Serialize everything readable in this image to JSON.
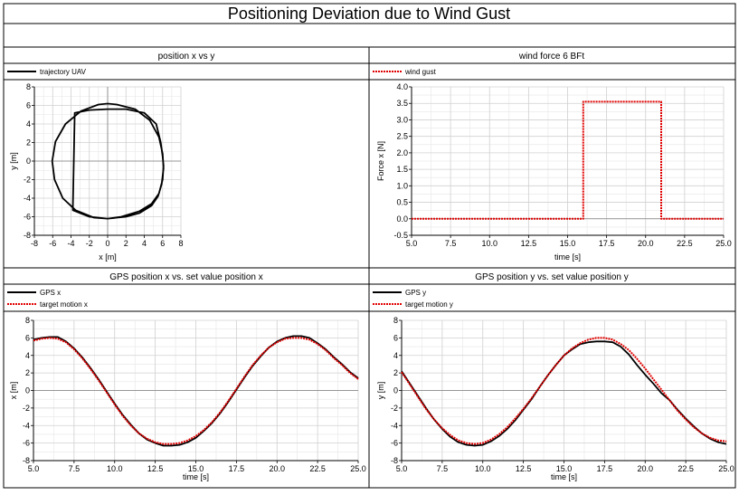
{
  "title": "Positioning Deviation due to Wind Gust",
  "chart_data": [
    {
      "id": "xy",
      "type": "line",
      "title": "position x vs y",
      "xlabel": "x [m]",
      "ylabel": "y [m]",
      "xlim": [
        -8,
        8
      ],
      "ylim": [
        -8,
        8
      ],
      "xticks": [
        -8,
        -6,
        -4,
        -2,
        0,
        2,
        4,
        6,
        8
      ],
      "yticks": [
        -8,
        -6,
        -4,
        -2,
        0,
        2,
        4,
        6,
        8
      ],
      "xtick_labels": [
        "-8",
        "-6",
        "-4",
        "-2",
        "0",
        "2",
        "4",
        "6",
        "8"
      ],
      "ytick_labels": [
        "-8",
        "-6",
        "-4",
        "-2",
        "0",
        "2",
        "4",
        "6",
        "8"
      ],
      "grid": true,
      "series": [
        {
          "name": "trajectory UAV",
          "color": "#000000",
          "style": "solid",
          "x": [
            -6.05,
            -5.7,
            -4.6,
            -2.9,
            -1.0,
            0.0,
            1.0,
            3.0,
            4.6,
            5.6,
            6.0,
            6.05,
            6.1,
            5.9,
            5.5,
            4.8,
            3.5,
            2.0,
            0.0,
            -2.0,
            -3.8,
            -3.6,
            -2.0,
            0.0,
            2.0,
            4.0,
            5.3,
            5.8,
            6.0,
            6.1,
            6.0,
            5.6,
            4.8,
            3.5,
            1.5,
            0.0,
            -1.5,
            -3.5,
            -4.9,
            -5.8,
            -6.05
          ],
          "y": [
            0.0,
            2.1,
            4.0,
            5.4,
            6.1,
            6.2,
            6.1,
            5.6,
            4.4,
            2.6,
            0.8,
            0.0,
            -0.8,
            -2.5,
            -3.8,
            -4.8,
            -5.6,
            -6.0,
            -6.2,
            -6.0,
            -5.3,
            5.2,
            5.5,
            5.6,
            5.6,
            5.2,
            4.0,
            2.0,
            0.5,
            -0.5,
            -2.0,
            -3.5,
            -4.6,
            -5.4,
            -6.0,
            -6.2,
            -6.1,
            -5.3,
            -4.0,
            -2.0,
            0.0
          ]
        }
      ]
    },
    {
      "id": "wind",
      "type": "line",
      "title": "wind force 6 BFt",
      "xlabel": "time [s]",
      "ylabel": "Force x [N]",
      "xlim": [
        5.0,
        25.0
      ],
      "ylim": [
        -0.5,
        4.0
      ],
      "xticks": [
        5.0,
        7.5,
        10.0,
        12.5,
        15.0,
        17.5,
        20.0,
        22.5,
        25.0
      ],
      "yticks": [
        -0.5,
        0.0,
        0.5,
        1.0,
        1.5,
        2.0,
        2.5,
        3.0,
        3.5,
        4.0
      ],
      "xtick_labels": [
        "5.0",
        "7.5",
        "10.0",
        "12.5",
        "15.0",
        "17.5",
        "20.0",
        "22.5",
        "25.0"
      ],
      "ytick_labels": [
        "-0.5",
        "0.0",
        "0.5",
        "1.0",
        "1.5",
        "2.0",
        "2.5",
        "3.0",
        "3.5",
        "4.0"
      ],
      "grid": true,
      "series": [
        {
          "name": "wind gust",
          "color": "#e00000",
          "style": "dotted",
          "x": [
            5.0,
            16.0,
            16.0,
            21.0,
            21.0,
            25.0
          ],
          "y": [
            0.0,
            0.0,
            3.55,
            3.55,
            0.0,
            0.0
          ]
        }
      ]
    },
    {
      "id": "gpsx",
      "type": "line",
      "title": "GPS position x vs. set value position x",
      "xlabel": "time [s]",
      "ylabel": "x [m]",
      "xlim": [
        5.0,
        25.0
      ],
      "ylim": [
        -8,
        8
      ],
      "xticks": [
        5.0,
        7.5,
        10.0,
        12.5,
        15.0,
        17.5,
        20.0,
        22.5,
        25.0
      ],
      "yticks": [
        -8,
        -6,
        -4,
        -2,
        0,
        2,
        4,
        6,
        8
      ],
      "xtick_labels": [
        "5.0",
        "7.5",
        "10.0",
        "12.5",
        "15.0",
        "17.5",
        "20.0",
        "22.5",
        "25.0"
      ],
      "ytick_labels": [
        "-8",
        "-6",
        "-4",
        "-2",
        "0",
        "2",
        "4",
        "6",
        "8"
      ],
      "grid": true,
      "series": [
        {
          "name": "GPS x",
          "color": "#000000",
          "style": "solid",
          "x": [
            5.0,
            5.5,
            6.0,
            6.5,
            7.0,
            7.5,
            8.0,
            8.5,
            9.0,
            9.5,
            10.0,
            10.5,
            11.0,
            11.5,
            12.0,
            12.5,
            13.0,
            13.5,
            14.0,
            14.5,
            15.0,
            15.5,
            16.0,
            16.5,
            17.0,
            17.5,
            18.0,
            18.5,
            19.0,
            19.5,
            20.0,
            20.5,
            21.0,
            21.5,
            22.0,
            22.5,
            23.0,
            23.5,
            24.0,
            24.5,
            25.0
          ],
          "y": [
            5.8,
            6.0,
            6.1,
            6.1,
            5.6,
            4.8,
            3.8,
            2.6,
            1.3,
            -0.1,
            -1.5,
            -2.8,
            -3.9,
            -4.9,
            -5.6,
            -6.0,
            -6.3,
            -6.3,
            -6.2,
            -5.9,
            -5.4,
            -4.6,
            -3.7,
            -2.6,
            -1.3,
            0.1,
            1.5,
            2.8,
            3.9,
            4.9,
            5.6,
            6.0,
            6.2,
            6.2,
            6.0,
            5.4,
            4.7,
            3.8,
            3.0,
            2.1,
            1.4
          ]
        },
        {
          "name": "target motion x",
          "color": "#e00000",
          "style": "dotted",
          "x": [
            5.0,
            5.5,
            6.0,
            6.5,
            7.0,
            7.5,
            8.0,
            8.5,
            9.0,
            9.5,
            10.0,
            10.5,
            11.0,
            11.5,
            12.0,
            12.5,
            13.0,
            13.5,
            14.0,
            14.5,
            15.0,
            15.5,
            16.0,
            16.5,
            17.0,
            17.5,
            18.0,
            18.5,
            19.0,
            19.5,
            20.0,
            20.5,
            21.0,
            21.5,
            22.0,
            22.5,
            23.0,
            23.5,
            24.0,
            24.5,
            25.0
          ],
          "y": [
            5.7,
            5.9,
            6.0,
            5.9,
            5.5,
            4.7,
            3.7,
            2.5,
            1.2,
            -0.2,
            -1.6,
            -2.9,
            -4.0,
            -4.9,
            -5.5,
            -5.9,
            -6.1,
            -6.1,
            -6.0,
            -5.7,
            -5.2,
            -4.5,
            -3.6,
            -2.5,
            -1.2,
            0.2,
            1.6,
            2.9,
            4.0,
            4.9,
            5.5,
            5.9,
            6.0,
            6.0,
            5.8,
            5.3,
            4.6,
            3.7,
            2.9,
            2.0,
            1.3
          ]
        }
      ]
    },
    {
      "id": "gpsy",
      "type": "line",
      "title": "GPS position y vs. set value position y",
      "xlabel": "time [s]",
      "ylabel": "y [m]",
      "xlim": [
        5.0,
        25.0
      ],
      "ylim": [
        -8,
        8
      ],
      "xticks": [
        5.0,
        7.5,
        10.0,
        12.5,
        15.0,
        17.5,
        20.0,
        22.5,
        25.0
      ],
      "yticks": [
        -8,
        -6,
        -4,
        -2,
        0,
        2,
        4,
        6,
        8
      ],
      "xtick_labels": [
        "5.0",
        "7.5",
        "10.0",
        "12.5",
        "15.0",
        "17.5",
        "20.0",
        "22.5",
        "25.0"
      ],
      "ytick_labels": [
        "-8",
        "-6",
        "-4",
        "-2",
        "0",
        "2",
        "4",
        "6",
        "8"
      ],
      "grid": true,
      "series": [
        {
          "name": "GPS y",
          "color": "#000000",
          "style": "solid",
          "x": [
            5.0,
            5.5,
            6.0,
            6.5,
            7.0,
            7.5,
            8.0,
            8.5,
            9.0,
            9.5,
            10.0,
            10.5,
            11.0,
            11.5,
            12.0,
            12.5,
            13.0,
            13.5,
            14.0,
            14.5,
            15.0,
            15.5,
            16.0,
            16.5,
            17.0,
            17.5,
            18.0,
            18.5,
            19.0,
            19.5,
            20.0,
            20.5,
            21.0,
            21.5,
            22.0,
            22.5,
            23.0,
            23.5,
            24.0,
            24.5,
            25.0
          ],
          "y": [
            2.2,
            0.8,
            -0.6,
            -2.0,
            -3.3,
            -4.4,
            -5.3,
            -5.9,
            -6.2,
            -6.3,
            -6.2,
            -5.8,
            -5.2,
            -4.4,
            -3.4,
            -2.2,
            -1.0,
            0.4,
            1.7,
            2.9,
            4.0,
            4.7,
            5.3,
            5.5,
            5.6,
            5.6,
            5.5,
            5.0,
            4.1,
            2.9,
            1.8,
            0.8,
            -0.3,
            -1.1,
            -2.2,
            -3.2,
            -4.1,
            -4.9,
            -5.5,
            -5.9,
            -6.1
          ]
        },
        {
          "name": "target motion y",
          "color": "#e00000",
          "style": "dotted",
          "x": [
            5.0,
            5.5,
            6.0,
            6.5,
            7.0,
            7.5,
            8.0,
            8.5,
            9.0,
            9.5,
            10.0,
            10.5,
            11.0,
            11.5,
            12.0,
            12.5,
            13.0,
            13.5,
            14.0,
            14.5,
            15.0,
            15.5,
            16.0,
            16.5,
            17.0,
            17.5,
            18.0,
            18.5,
            19.0,
            19.5,
            20.0,
            20.5,
            21.0,
            21.5,
            22.0,
            22.5,
            23.0,
            23.5,
            24.0,
            24.5,
            25.0
          ],
          "y": [
            2.1,
            0.7,
            -0.7,
            -2.1,
            -3.3,
            -4.3,
            -5.1,
            -5.7,
            -6.0,
            -6.1,
            -6.0,
            -5.6,
            -5.0,
            -4.2,
            -3.2,
            -2.1,
            -0.9,
            0.4,
            1.7,
            2.9,
            4.0,
            4.8,
            5.4,
            5.8,
            6.0,
            6.0,
            5.8,
            5.3,
            4.6,
            3.6,
            2.5,
            1.3,
            0.1,
            -1.1,
            -2.3,
            -3.3,
            -4.2,
            -4.9,
            -5.4,
            -5.7,
            -5.8
          ]
        }
      ]
    }
  ]
}
